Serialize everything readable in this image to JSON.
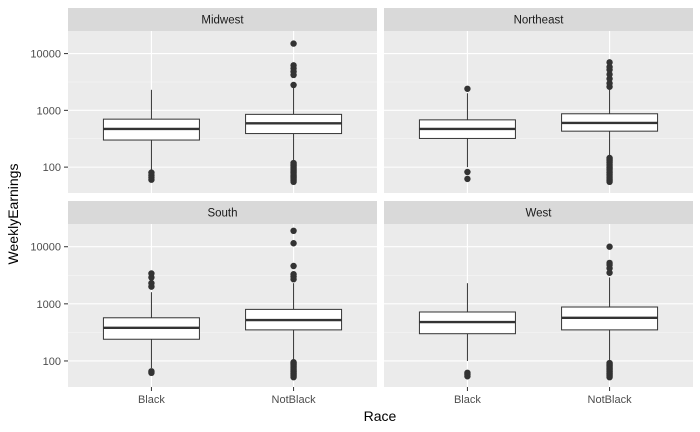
{
  "chart_data": {
    "type": "boxplot",
    "xlabel": "Race",
    "ylabel": "WeeklyEarnings",
    "y_scale": "log10",
    "ylim": [
      35,
      25000
    ],
    "y_ticks": [
      100,
      1000,
      10000
    ],
    "y_tick_labels": [
      "100",
      "1000",
      "10000"
    ],
    "categories": [
      "Black",
      "NotBlack"
    ],
    "facet_layout": "2x2",
    "grid": true,
    "panels": [
      {
        "facet": "Midwest",
        "boxes": [
          {
            "category": "Black",
            "whisker_low": 85,
            "q1": 300,
            "median": 470,
            "q3": 700,
            "whisker_high": 2300,
            "outliers": [
              60,
              66,
              72,
              80
            ]
          },
          {
            "category": "NotBlack",
            "whisker_low": 125,
            "q1": 390,
            "median": 590,
            "q3": 850,
            "whisker_high": 2600,
            "outliers": [
              55,
              58,
              62,
              65,
              68,
              72,
              76,
              80,
              85,
              90,
              95,
              100,
              106,
              112,
              118,
              2800,
              4200,
              4800,
              5500,
              6200,
              15000
            ]
          }
        ]
      },
      {
        "facet": "Northeast",
        "boxes": [
          {
            "category": "Black",
            "whisker_low": 100,
            "q1": 320,
            "median": 470,
            "q3": 680,
            "whisker_high": 2000,
            "outliers": [
              62,
              82,
              2400
            ]
          },
          {
            "category": "NotBlack",
            "whisker_low": 160,
            "q1": 430,
            "median": 600,
            "q3": 870,
            "whisker_high": 2300,
            "outliers": [
              55,
              58,
              62,
              66,
              70,
              75,
              80,
              86,
              92,
              98,
              105,
              112,
              120,
              128,
              136,
              145,
              2600,
              3000,
              3600,
              4300,
              5200,
              5800,
              7000
            ]
          }
        ]
      },
      {
        "facet": "South",
        "boxes": [
          {
            "category": "Black",
            "whisker_low": 75,
            "q1": 240,
            "median": 380,
            "q3": 570,
            "whisker_high": 1600,
            "outliers": [
              62,
              66,
              2000,
              2300,
              2900,
              3400
            ]
          },
          {
            "category": "NotBlack",
            "whisker_low": 100,
            "q1": 350,
            "median": 520,
            "q3": 800,
            "whisker_high": 2300,
            "outliers": [
              52,
              55,
              58,
              61,
              64,
              67,
              70,
              74,
              78,
              82,
              86,
              90,
              95,
              2700,
              3000,
              3300,
              4600,
              11500,
              19000
            ]
          }
        ]
      },
      {
        "facet": "West",
        "boxes": [
          {
            "category": "Black",
            "whisker_low": 100,
            "q1": 300,
            "median": 480,
            "q3": 720,
            "whisker_high": 2300,
            "outliers": [
              54,
              58,
              62
            ]
          },
          {
            "category": "NotBlack",
            "whisker_low": 100,
            "q1": 350,
            "median": 570,
            "q3": 880,
            "whisker_high": 2900,
            "outliers": [
              52,
              55,
              58,
              61,
              64,
              67,
              70,
              73,
              76,
              80,
              84,
              88,
              92,
              3500,
              4200,
              4800,
              5200,
              10000
            ]
          }
        ]
      }
    ]
  }
}
